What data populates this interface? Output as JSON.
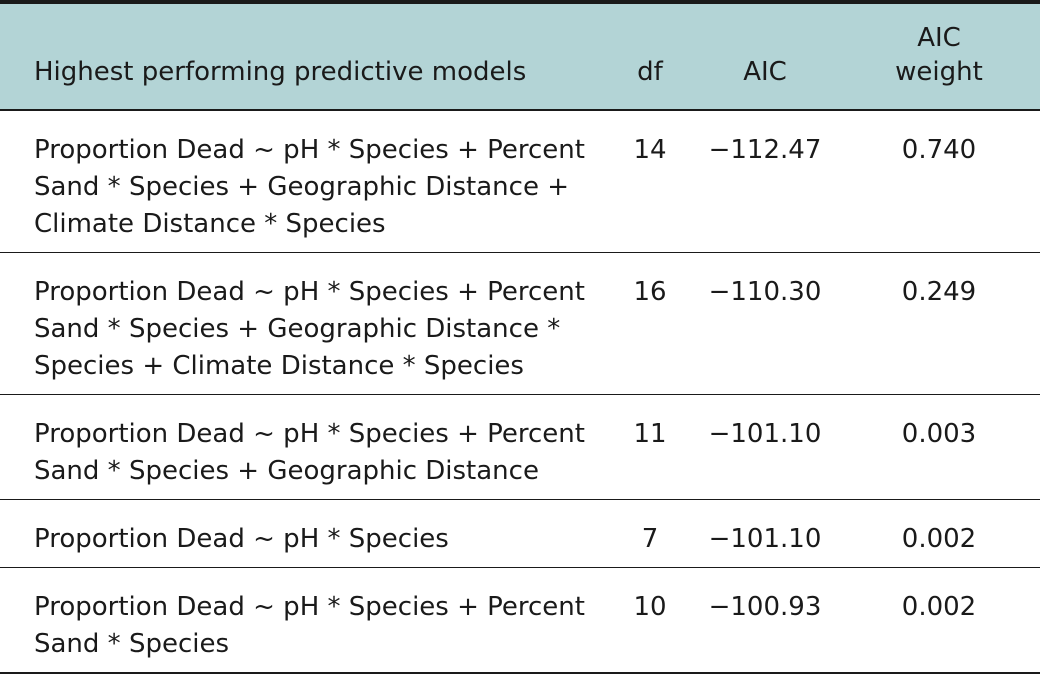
{
  "table": {
    "headers": {
      "model": "Highest performing predictive models",
      "df": "df",
      "aic": "AIC",
      "weight_line1": "AIC",
      "weight_line2": "weight"
    },
    "rows": [
      {
        "model": "Proportion Dead ~ pH * Species + Percent Sand * Species + Geographic Distance + Climate Distance * Species",
        "df": "14",
        "aic": "−112.47",
        "weight": "0.740"
      },
      {
        "model": "Proportion Dead ~ pH * Species + Percent Sand * Species + Geographic Distance * Species + Climate Distance * Species",
        "df": "16",
        "aic": "−110.30",
        "weight": "0.249"
      },
      {
        "model": "Proportion Dead ~ pH * Species + Percent Sand * Species + Geographic Distance",
        "df": "11",
        "aic": "−101.10",
        "weight": "0.003"
      },
      {
        "model": "Proportion Dead ~ pH * Species",
        "df": "7",
        "aic": "−101.10",
        "weight": "0.002"
      },
      {
        "model": "Proportion Dead ~ pH * Species + Percent Sand * Species",
        "df": "10",
        "aic": "−100.93",
        "weight": "0.002"
      }
    ]
  },
  "colors": {
    "header_background": "#b3d4d6",
    "rule": "#1a1a1a",
    "text": "#1a1a1a"
  }
}
